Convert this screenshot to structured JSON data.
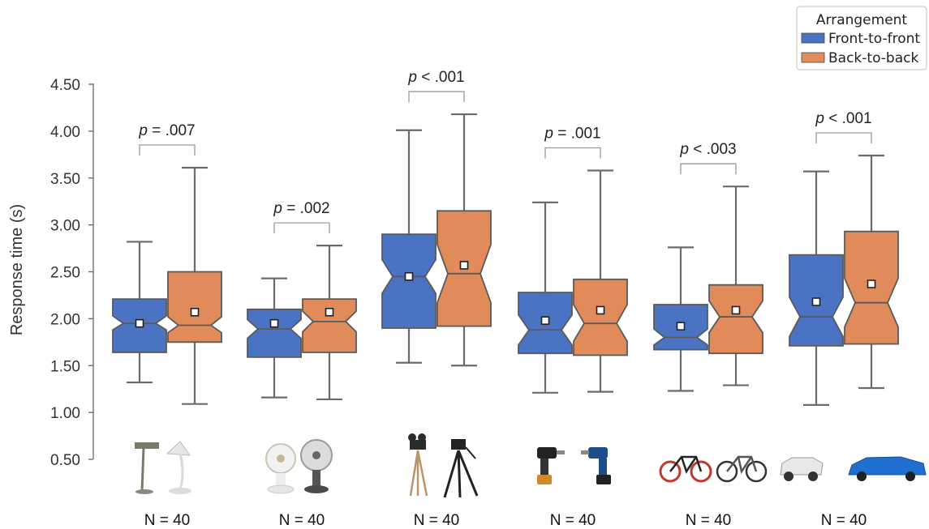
{
  "chart_data": {
    "type": "boxplot",
    "ylabel": "Response time (s)",
    "ylim": [
      0.5,
      4.5
    ],
    "yticks": [
      "0.50",
      "1.00",
      "1.50",
      "2.00",
      "2.50",
      "3.00",
      "3.50",
      "4.00",
      "4.50"
    ],
    "legend": {
      "title": "Arrangement",
      "placement": "top-right",
      "entries": [
        {
          "name": "Front-to-front",
          "color": "#4a73c4"
        },
        {
          "name": "Back-to-back",
          "color": "#e28b5a"
        }
      ]
    },
    "groups": [
      {
        "object_icon": "desk-lamp",
        "n_label": "N = 40",
        "p_label": {
          "italic": "p",
          "rest": " = .007"
        },
        "boxes": [
          {
            "series": "Front-to-front",
            "whisker_low": 1.32,
            "q1": 1.64,
            "median": 1.95,
            "q3": 2.21,
            "whisker_high": 2.82,
            "mean": 1.95,
            "notch_low": 1.88,
            "notch_high": 2.03
          },
          {
            "series": "Back-to-back",
            "whisker_low": 1.09,
            "q1": 1.75,
            "median": 1.93,
            "q3": 2.5,
            "whisker_high": 3.61,
            "mean": 2.07,
            "notch_low": 1.85,
            "notch_high": 2.02
          }
        ]
      },
      {
        "object_icon": "electric-fan",
        "n_label": "N = 40",
        "p_label": {
          "italic": "p",
          "rest": " = .002"
        },
        "boxes": [
          {
            "series": "Front-to-front",
            "whisker_low": 1.16,
            "q1": 1.59,
            "median": 1.89,
            "q3": 2.1,
            "whisker_high": 2.43,
            "mean": 1.95,
            "notch_low": 1.79,
            "notch_high": 1.99
          },
          {
            "series": "Back-to-back",
            "whisker_low": 1.14,
            "q1": 1.64,
            "median": 1.97,
            "q3": 2.21,
            "whisker_high": 2.78,
            "mean": 2.07,
            "notch_low": 1.86,
            "notch_high": 2.08
          }
        ]
      },
      {
        "object_icon": "camera-tripod",
        "n_label": "N = 40",
        "p_label": {
          "italic": "p",
          "rest": " < .001"
        },
        "boxes": [
          {
            "series": "Front-to-front",
            "whisker_low": 1.53,
            "q1": 1.9,
            "median": 2.45,
            "q3": 2.9,
            "whisker_high": 4.01,
            "mean": 2.45,
            "notch_low": 2.27,
            "notch_high": 2.63
          },
          {
            "series": "Back-to-back",
            "whisker_low": 1.5,
            "q1": 1.92,
            "median": 2.48,
            "q3": 3.15,
            "whisker_high": 4.18,
            "mean": 2.57,
            "notch_low": 2.17,
            "notch_high": 2.79
          }
        ]
      },
      {
        "object_icon": "power-drill",
        "n_label": "N = 40",
        "p_label": {
          "italic": "p",
          "rest": " = .001"
        },
        "boxes": [
          {
            "series": "Front-to-front",
            "whisker_low": 1.21,
            "q1": 1.63,
            "median": 1.88,
            "q3": 2.28,
            "whisker_high": 3.24,
            "mean": 1.98,
            "notch_low": 1.72,
            "notch_high": 2.04
          },
          {
            "series": "Back-to-back",
            "whisker_low": 1.22,
            "q1": 1.61,
            "median": 1.95,
            "q3": 2.42,
            "whisker_high": 3.58,
            "mean": 2.09,
            "notch_low": 1.76,
            "notch_high": 2.15
          }
        ]
      },
      {
        "object_icon": "bicycle",
        "n_label": "N = 40",
        "p_label": {
          "italic": "p",
          "rest": " < .003"
        },
        "boxes": [
          {
            "series": "Front-to-front",
            "whisker_low": 1.23,
            "q1": 1.67,
            "median": 1.8,
            "q3": 2.15,
            "whisker_high": 2.76,
            "mean": 1.92,
            "notch_low": 1.72,
            "notch_high": 1.89
          },
          {
            "series": "Back-to-back",
            "whisker_low": 1.29,
            "q1": 1.63,
            "median": 2.02,
            "q3": 2.36,
            "whisker_high": 3.41,
            "mean": 2.09,
            "notch_low": 1.85,
            "notch_high": 2.19
          }
        ]
      },
      {
        "object_icon": "car",
        "n_label": "N = 40",
        "p_label": {
          "italic": "p",
          "rest": " < .001"
        },
        "boxes": [
          {
            "series": "Front-to-front",
            "whisker_low": 1.08,
            "q1": 1.71,
            "median": 2.02,
            "q3": 2.68,
            "whisker_high": 3.57,
            "mean": 2.18,
            "notch_low": 1.81,
            "notch_high": 2.23
          },
          {
            "series": "Back-to-back",
            "whisker_low": 1.26,
            "q1": 1.73,
            "median": 2.17,
            "q3": 2.93,
            "whisker_high": 3.74,
            "mean": 2.37,
            "notch_low": 1.91,
            "notch_high": 2.43
          }
        ]
      }
    ]
  }
}
